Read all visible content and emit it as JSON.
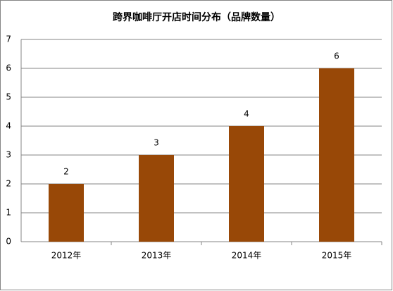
{
  "chart_data": {
    "type": "bar",
    "title": "跨界咖啡厅开店时间分布（品牌数量）",
    "categories": [
      "2012年",
      "2013年",
      "2014年",
      "2015年"
    ],
    "values": [
      2,
      3,
      4,
      6
    ],
    "color": "#984807",
    "ylim": [
      0,
      7
    ],
    "yticks": [
      0,
      1,
      2,
      3,
      4,
      5,
      6,
      7
    ],
    "grid": true
  }
}
